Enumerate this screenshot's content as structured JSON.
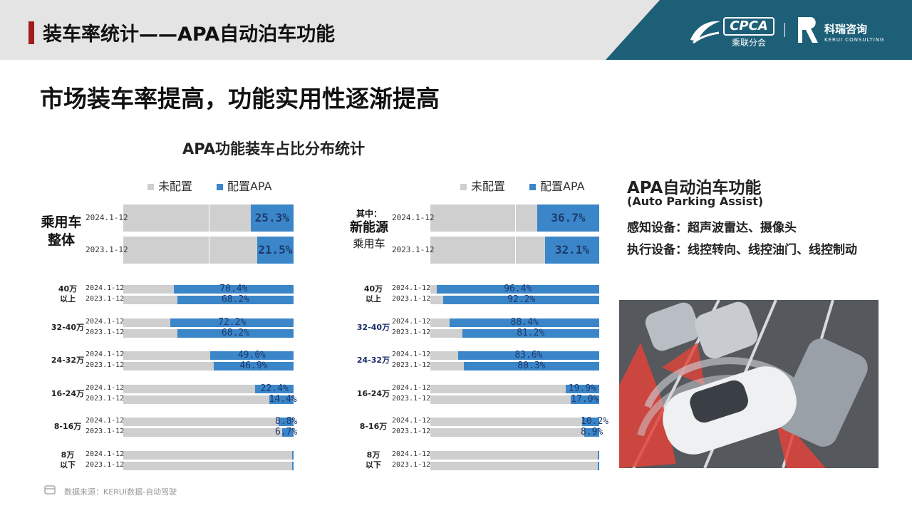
{
  "header": {
    "title": "装车率统计——APA自动泊车功能",
    "logo_cpca": "CPCA",
    "logo_cpca_sub": "乘联分会",
    "logo_kerui_cn": "科瑞咨询",
    "logo_kerui_en": "KERUI CONSULTING",
    "accent_color": "#a11c1c",
    "panel_color": "#1e5f78"
  },
  "subtitle": "市场装车率提高，功能实用性逐渐提高",
  "chart_title": "APA功能装车占比分布统计",
  "legend": {
    "not_configured": "未配置",
    "configured": "配置APA",
    "not_configured_color": "#cfcfcf",
    "configured_color": "#3b86c9"
  },
  "chart_data": [
    {
      "type": "bar",
      "orientation": "horizontal-stacked-100",
      "group_title": [
        "乘用车",
        "整体"
      ],
      "series": [
        {
          "name": "未配置"
        },
        {
          "name": "配置APA"
        }
      ],
      "overall": [
        {
          "year": "2024.1-12",
          "value": 25.3,
          "label": "25.3%"
        },
        {
          "year": "2023.1-12",
          "value": 21.5,
          "label": "21.5%"
        }
      ],
      "categories": [
        {
          "name": [
            "40万",
            "以上"
          ],
          "rows": [
            {
              "year": "2024.1-12",
              "value": 70.4,
              "label": "70.4%"
            },
            {
              "year": "2023.1-12",
              "value": 68.2,
              "label": "68.2%"
            }
          ]
        },
        {
          "name": [
            "32-40万"
          ],
          "rows": [
            {
              "year": "2024.1-12",
              "value": 72.2,
              "label": "72.2%"
            },
            {
              "year": "2023.1-12",
              "value": 68.2,
              "label": "68.2%"
            }
          ]
        },
        {
          "name": [
            "24-32万"
          ],
          "rows": [
            {
              "year": "2024.1-12",
              "value": 49.0,
              "label": "49.0%"
            },
            {
              "year": "2023.1-12",
              "value": 46.9,
              "label": "46.9%"
            }
          ]
        },
        {
          "name": [
            "16-24万"
          ],
          "rows": [
            {
              "year": "2024.1-12",
              "value": 22.4,
              "label": "22.4%"
            },
            {
              "year": "2023.1-12",
              "value": 14.4,
              "label": "14.4%"
            }
          ]
        },
        {
          "name": [
            "8-16万"
          ],
          "rows": [
            {
              "year": "2024.1-12",
              "value": 8.8,
              "label": "8.8%"
            },
            {
              "year": "2023.1-12",
              "value": 6.7,
              "label": "6.7%"
            }
          ]
        },
        {
          "name": [
            "8万",
            "以下"
          ],
          "rows": [
            {
              "year": "2024.1-12",
              "value": 0.5,
              "label": ""
            },
            {
              "year": "2023.1-12",
              "value": 0.5,
              "label": ""
            }
          ]
        }
      ]
    },
    {
      "type": "bar",
      "orientation": "horizontal-stacked-100",
      "group_title": [
        "其中：",
        "新能源",
        "乘用车"
      ],
      "series": [
        {
          "name": "未配置"
        },
        {
          "name": "配置APA"
        }
      ],
      "overall": [
        {
          "year": "2024.1-12",
          "value": 36.7,
          "label": "36.7%"
        },
        {
          "year": "2023.1-12",
          "value": 32.1,
          "label": "32.1%"
        }
      ],
      "categories": [
        {
          "name": [
            "40万",
            "以上"
          ],
          "rows": [
            {
              "year": "2024.1-12",
              "value": 96.4,
              "label": "96.4%"
            },
            {
              "year": "2023.1-12",
              "value": 92.2,
              "label": "92.2%"
            }
          ]
        },
        {
          "name": [
            "32-40万"
          ],
          "rows": [
            {
              "year": "2024.1-12",
              "value": 88.4,
              "label": "88.4%"
            },
            {
              "year": "2023.1-12",
              "value": 81.2,
              "label": "81.2%"
            }
          ]
        },
        {
          "name": [
            "24-32万"
          ],
          "rows": [
            {
              "year": "2024.1-12",
              "value": 83.6,
              "label": "83.6%"
            },
            {
              "year": "2023.1-12",
              "value": 80.3,
              "label": "80.3%"
            }
          ]
        },
        {
          "name": [
            "16-24万"
          ],
          "rows": [
            {
              "year": "2024.1-12",
              "value": 19.9,
              "label": "19.9%"
            },
            {
              "year": "2023.1-12",
              "value": 17.0,
              "label": "17.0%"
            }
          ]
        },
        {
          "name": [
            "8-16万"
          ],
          "rows": [
            {
              "year": "2024.1-12",
              "value": 10.2,
              "label": "10.2%"
            },
            {
              "year": "2023.1-12",
              "value": 8.9,
              "label": "8.9%"
            }
          ]
        },
        {
          "name": [
            "8万",
            "以下"
          ],
          "rows": [
            {
              "year": "2024.1-12",
              "value": 0.5,
              "label": ""
            },
            {
              "year": "2023.1-12",
              "value": 0.5,
              "label": ""
            }
          ]
        }
      ]
    }
  ],
  "info": {
    "title": "APA自动泊车功能",
    "subtitle": "(Auto Parking Assist)",
    "sensing": "感知设备：超声波雷达、摄像头",
    "execution": "执行设备：线控转向、线控油门、线控制动"
  },
  "footer": {
    "source": "数据来源：KERUI数据-自动驾驶"
  }
}
